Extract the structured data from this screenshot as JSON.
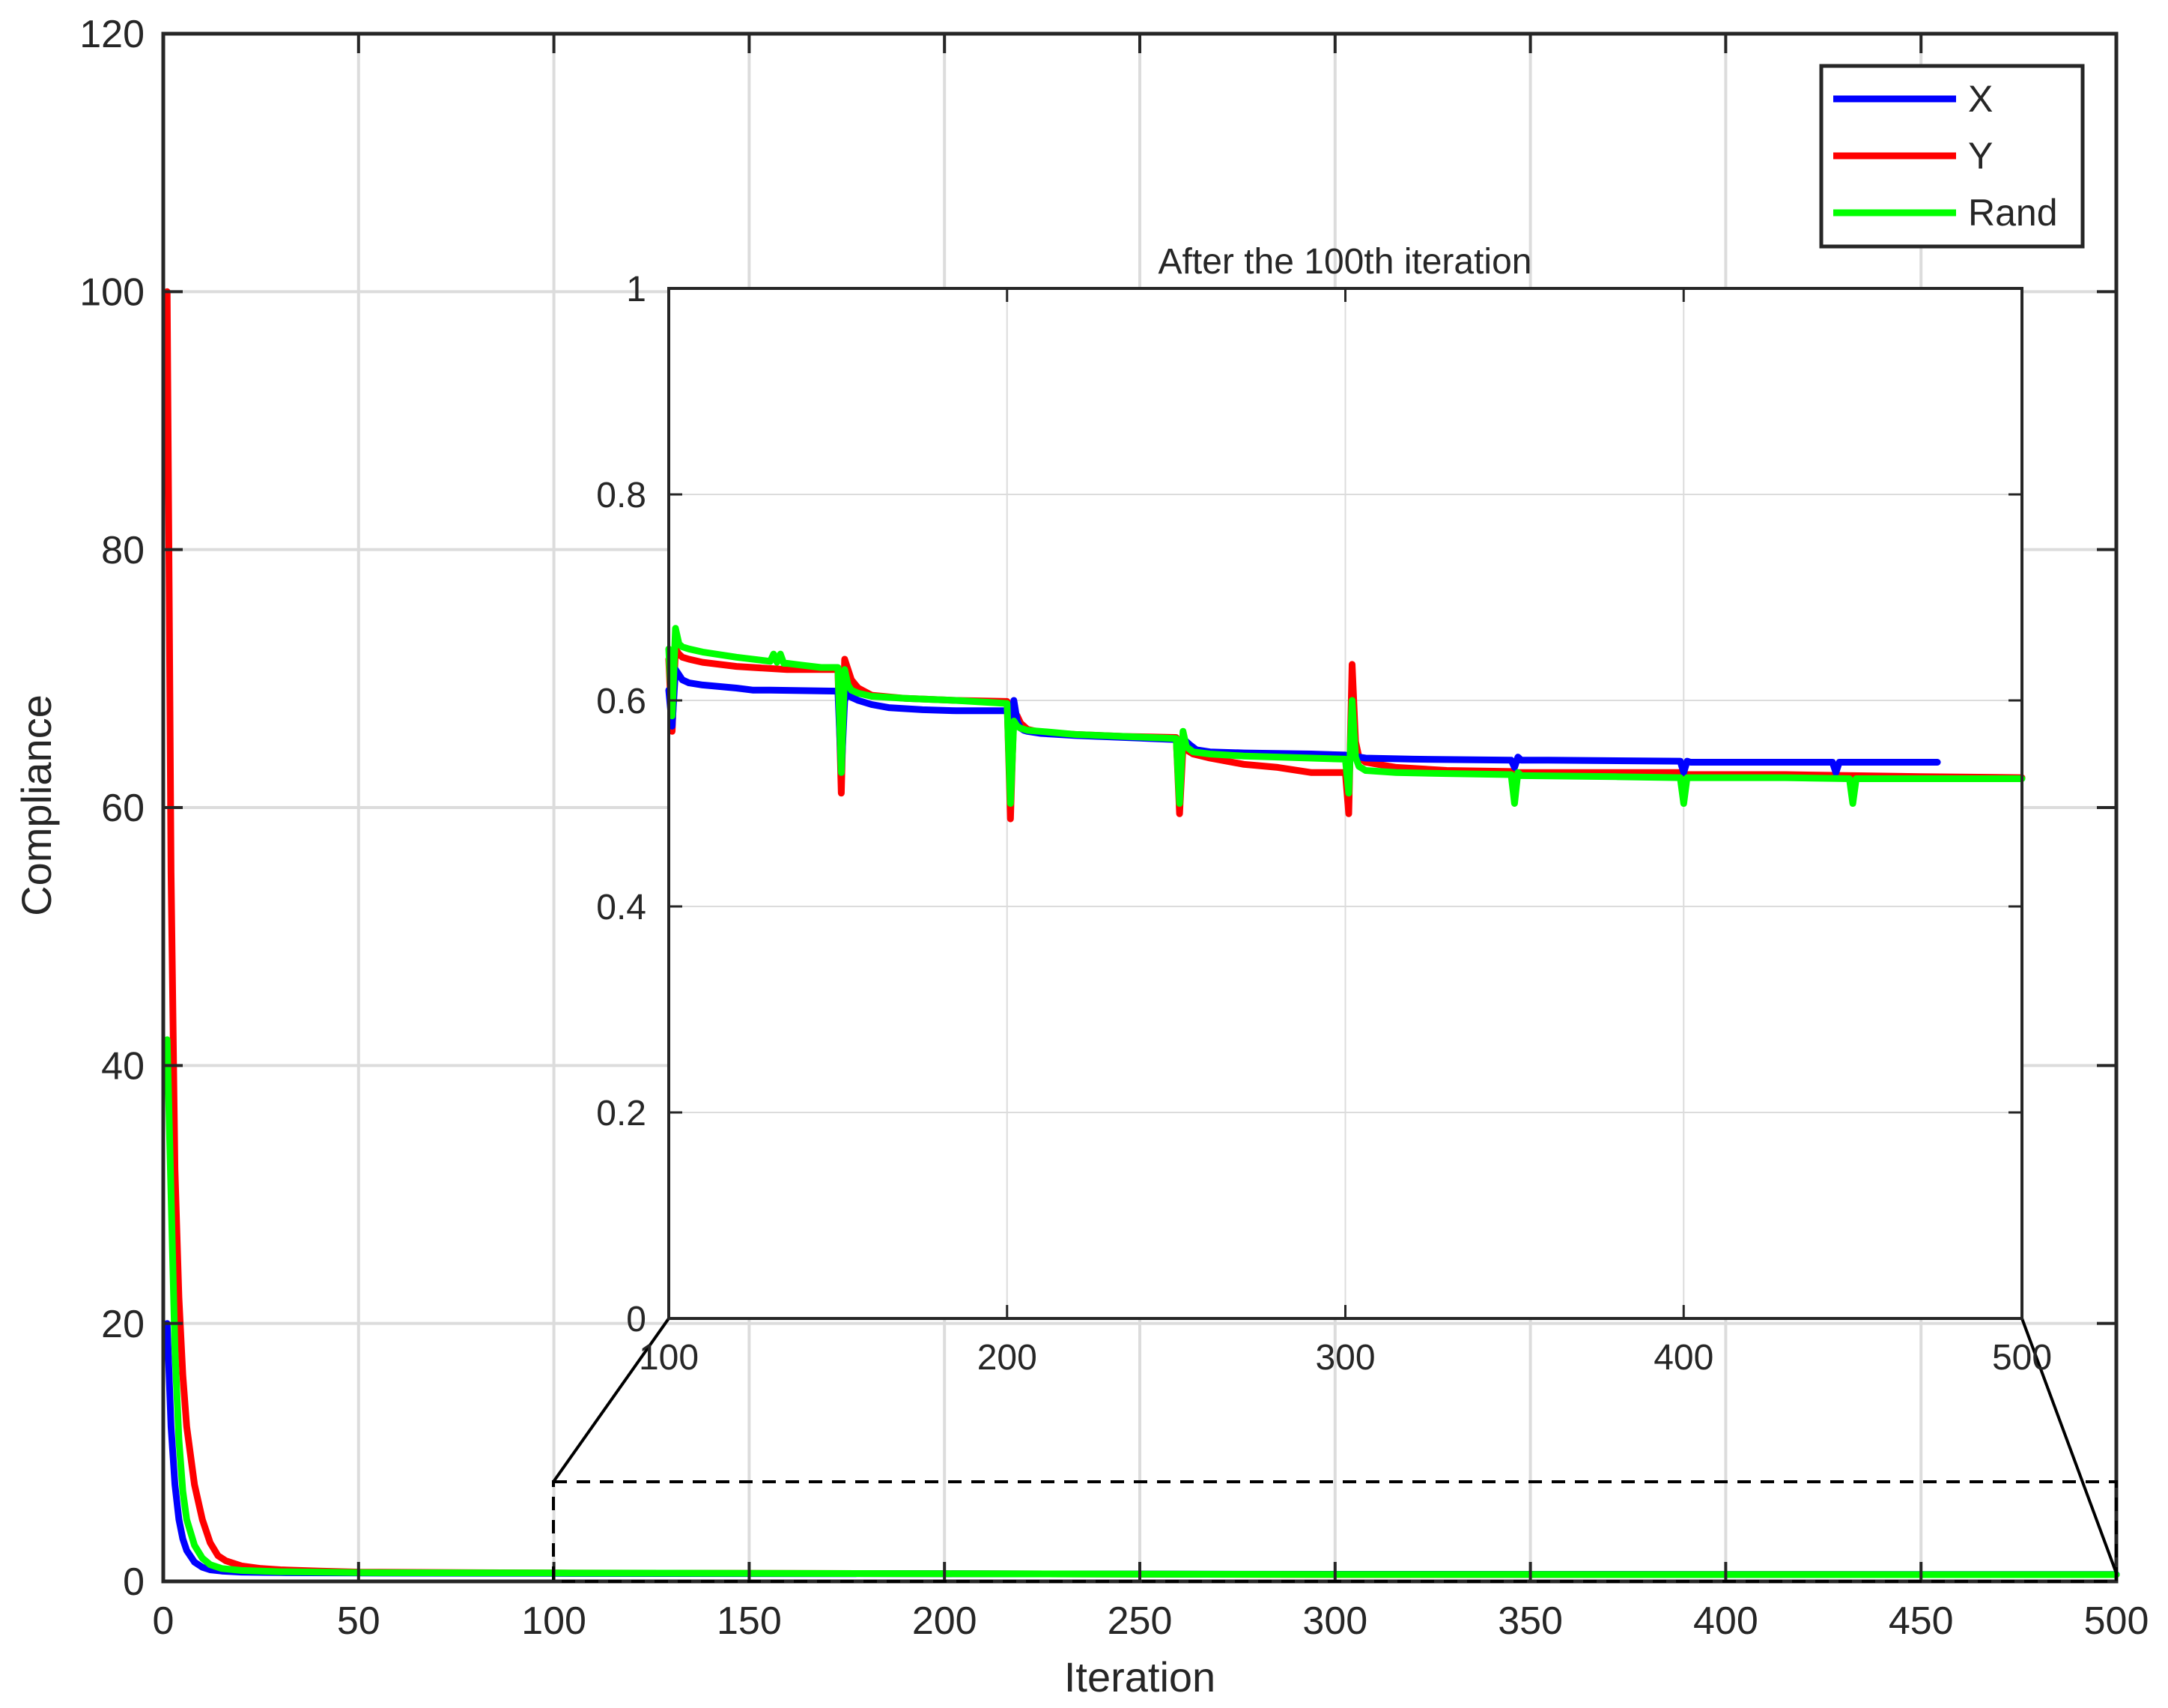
{
  "chart_data": [
    {
      "type": "line",
      "id": "main",
      "title": "",
      "xlabel": "Iteration",
      "ylabel": "Compliance",
      "xlim": [
        0,
        500
      ],
      "ylim": [
        0,
        120
      ],
      "xticks": [
        0,
        50,
        100,
        150,
        200,
        250,
        300,
        350,
        400,
        450,
        500
      ],
      "yticks": [
        0,
        20,
        40,
        60,
        80,
        100,
        120
      ],
      "grid": true,
      "legend_position": "top-right",
      "series": [
        {
          "name": "X",
          "color": "#0000ff",
          "x": [
            1,
            2,
            3,
            4,
            5,
            6,
            8,
            10,
            12,
            15,
            20,
            30,
            50,
            100,
            200,
            300,
            400,
            500
          ],
          "y": [
            20,
            12,
            7.5,
            4.8,
            3.3,
            2.4,
            1.5,
            1.1,
            0.9,
            0.8,
            0.72,
            0.68,
            0.65,
            0.62,
            0.59,
            0.55,
            0.54,
            0.54
          ]
        },
        {
          "name": "Y",
          "color": "#ff0000",
          "x": [
            1,
            2,
            3,
            4,
            5,
            6,
            8,
            10,
            12,
            14,
            16,
            20,
            25,
            30,
            40,
            50,
            100,
            200,
            300,
            400,
            500
          ],
          "y": [
            100,
            55,
            32,
            22,
            16,
            12,
            7.5,
            4.8,
            3.0,
            2.0,
            1.6,
            1.2,
            1.0,
            0.9,
            0.8,
            0.72,
            0.65,
            0.6,
            0.53,
            0.53,
            0.52
          ]
        },
        {
          "name": "Rand",
          "color": "#00ff00",
          "x": [
            1,
            2,
            3,
            4,
            5,
            6,
            8,
            10,
            12,
            15,
            20,
            30,
            50,
            100,
            200,
            300,
            400,
            500
          ],
          "y": [
            42,
            30,
            18,
            11,
            7,
            4.8,
            2.8,
            1.8,
            1.3,
            1.0,
            0.85,
            0.75,
            0.68,
            0.65,
            0.6,
            0.54,
            0.53,
            0.52
          ]
        }
      ]
    },
    {
      "type": "line",
      "id": "inset",
      "title": "After the 100th iteration",
      "xlim": [
        100,
        500
      ],
      "ylim": [
        0,
        1
      ],
      "xticks": [
        100,
        200,
        300,
        400,
        500
      ],
      "yticks": [
        0,
        0.2,
        0.4,
        0.6,
        0.8,
        1
      ],
      "grid": true,
      "series": [
        {
          "name": "X",
          "color": "#0000ff",
          "x": [
            100,
            101,
            102,
            103,
            104,
            106,
            110,
            120,
            125,
            130,
            150,
            151,
            152,
            153,
            154,
            156,
            160,
            165,
            175,
            185,
            200,
            201,
            202,
            203,
            204,
            205,
            206,
            210,
            220,
            235,
            250,
            251,
            252,
            253,
            254,
            256,
            260,
            270,
            290,
            300,
            301,
            302,
            303,
            304,
            306,
            320,
            349,
            350,
            351,
            352,
            360,
            399,
            400,
            401,
            402,
            420,
            444,
            445,
            446,
            447,
            475
          ],
          "y": [
            0.61,
            0.575,
            0.63,
            0.625,
            0.62,
            0.617,
            0.615,
            0.612,
            0.61,
            0.61,
            0.609,
            0.53,
            0.6,
            0.607,
            0.603,
            0.6,
            0.596,
            0.593,
            0.591,
            0.59,
            0.59,
            0.57,
            0.6,
            0.58,
            0.573,
            0.571,
            0.57,
            0.568,
            0.566,
            0.564,
            0.562,
            0.54,
            0.563,
            0.56,
            0.557,
            0.552,
            0.55,
            0.549,
            0.548,
            0.547,
            0.54,
            0.548,
            0.546,
            0.545,
            0.544,
            0.543,
            0.542,
            0.535,
            0.545,
            0.542,
            0.542,
            0.541,
            0.53,
            0.541,
            0.54,
            0.54,
            0.54,
            0.53,
            0.54,
            0.54,
            0.54
          ]
        },
        {
          "name": "Y",
          "color": "#ff0000",
          "x": [
            100,
            101,
            102,
            103,
            104,
            106,
            110,
            120,
            135,
            145,
            150,
            151,
            152,
            153,
            154,
            156,
            160,
            170,
            185,
            200,
            201,
            202,
            203,
            204,
            206,
            210,
            220,
            235,
            250,
            251,
            252,
            253,
            255,
            260,
            270,
            280,
            290,
            300,
            301,
            302,
            303,
            304,
            306,
            315,
            330,
            349,
            350,
            351,
            352,
            380,
            399,
            400,
            401,
            430,
            450,
            470,
            500
          ],
          "y": [
            0.64,
            0.57,
            0.65,
            0.645,
            0.642,
            0.64,
            0.637,
            0.633,
            0.63,
            0.63,
            0.63,
            0.51,
            0.64,
            0.63,
            0.62,
            0.612,
            0.605,
            0.602,
            0.6,
            0.599,
            0.485,
            0.59,
            0.585,
            0.578,
            0.572,
            0.569,
            0.567,
            0.565,
            0.564,
            0.49,
            0.555,
            0.552,
            0.548,
            0.544,
            0.538,
            0.535,
            0.53,
            0.53,
            0.49,
            0.635,
            0.56,
            0.545,
            0.54,
            0.535,
            0.532,
            0.531,
            0.53,
            0.53,
            0.53,
            0.53,
            0.53,
            0.529,
            0.528,
            0.528,
            0.527,
            0.526,
            0.525
          ]
        },
        {
          "name": "Rand",
          "color": "#00ff00",
          "x": [
            100,
            101,
            102,
            103,
            104,
            106,
            110,
            120,
            130,
            131,
            132,
            133,
            134,
            135,
            140,
            145,
            150,
            151,
            152,
            153,
            154,
            156,
            160,
            170,
            185,
            200,
            201,
            202,
            203,
            204,
            206,
            210,
            220,
            235,
            250,
            251,
            252,
            253,
            255,
            260,
            270,
            280,
            290,
            300,
            301,
            302,
            303,
            304,
            306,
            315,
            330,
            349,
            350,
            351,
            352,
            380,
            399,
            400,
            401,
            430,
            449,
            450,
            451,
            470,
            500
          ],
          "y": [
            0.65,
            0.585,
            0.67,
            0.655,
            0.652,
            0.65,
            0.647,
            0.642,
            0.638,
            0.645,
            0.637,
            0.645,
            0.636,
            0.636,
            0.634,
            0.632,
            0.632,
            0.53,
            0.63,
            0.615,
            0.61,
            0.607,
            0.604,
            0.602,
            0.6,
            0.597,
            0.5,
            0.58,
            0.575,
            0.573,
            0.571,
            0.57,
            0.567,
            0.565,
            0.563,
            0.5,
            0.57,
            0.555,
            0.55,
            0.548,
            0.546,
            0.545,
            0.544,
            0.543,
            0.51,
            0.6,
            0.545,
            0.536,
            0.532,
            0.53,
            0.529,
            0.528,
            0.5,
            0.53,
            0.527,
            0.526,
            0.525,
            0.5,
            0.525,
            0.525,
            0.524,
            0.5,
            0.524,
            0.524,
            0.524
          ]
        }
      ]
    }
  ]
}
